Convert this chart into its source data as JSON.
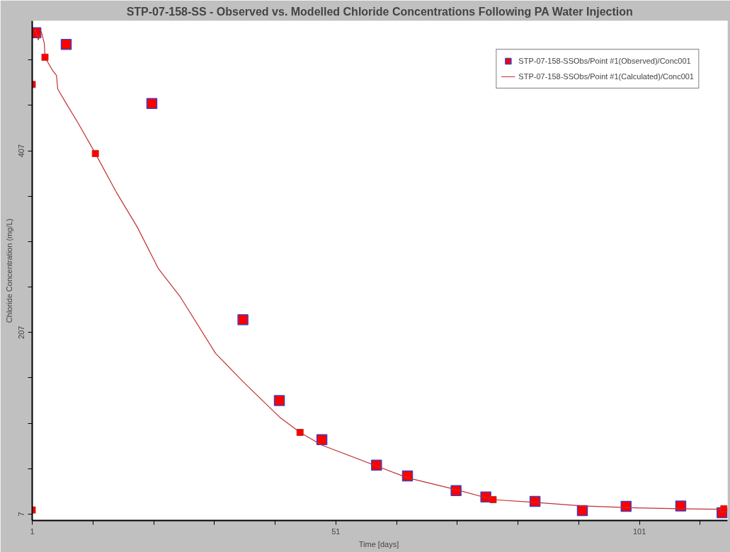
{
  "chart_data": {
    "type": "scatter",
    "title": "STP-07-158-SS - Observed vs. Modelled Chloride Concentrations Following PA Water Injection",
    "xlabel": "Time  [days]",
    "ylabel": "Chloride Concentration (mg/L)",
    "xlim": [
      1,
      115.5
    ],
    "ylim": [
      0,
      550
    ],
    "xticks": [
      1,
      {
        "value": 11,
        "label": null
      },
      {
        "value": 21,
        "label": null
      },
      {
        "value": 31,
        "label": null
      },
      {
        "value": 41,
        "label": null
      },
      51,
      {
        "value": 61,
        "label": null
      },
      {
        "value": 71,
        "label": null
      },
      {
        "value": 81,
        "label": null
      },
      {
        "value": 91,
        "label": null
      },
      101,
      {
        "value": 111,
        "label": null
      }
    ],
    "yticks": [
      7,
      {
        "value": 57,
        "label": null
      },
      {
        "value": 107,
        "label": null
      },
      {
        "value": 157,
        "label": null
      },
      207,
      {
        "value": 257,
        "label": null
      },
      {
        "value": 307,
        "label": null
      },
      {
        "value": 357,
        "label": null
      },
      407,
      {
        "value": 457,
        "label": null
      },
      {
        "value": 507,
        "label": null
      }
    ],
    "grid": false,
    "legend": "top right",
    "series": [
      {
        "name": "STP-07-158-SSObs/Point #1(Observed)/Conc001",
        "marker": "square",
        "color": "#ff0000",
        "x": [
          1.6,
          6.6,
          20.7,
          35.7,
          41.7,
          48.7,
          57.7,
          62.8,
          70.8,
          75.7,
          83.8,
          91.6,
          98.8,
          107.8,
          114.6
        ],
        "values": [
          537,
          524,
          459,
          221,
          132,
          89,
          61,
          49,
          33,
          26,
          21,
          11,
          15.5,
          16,
          8.5
        ]
      },
      {
        "name": "STP-07-158-SSObs/Point #1(Calculated)/Conc001",
        "type": "line",
        "marker": "none",
        "line_style": "solid",
        "color": "#c03030",
        "x": [
          1,
          1.5,
          2,
          2.5,
          3,
          3.1,
          4.3,
          5.0,
          5.2,
          6.7,
          8.6,
          11.4,
          14.8,
          18.3,
          21.8,
          25.4,
          31.2,
          35.7,
          41.7,
          45.1,
          48.7,
          57.7,
          62.8,
          70.8,
          76.9,
          83.8,
          91.6,
          100.3,
          107.8,
          114.9
        ],
        "values": [
          534,
          541,
          529,
          538,
          525,
          510,
          496,
          490,
          475,
          458,
          437,
          404,
          362,
          323,
          277,
          246,
          184,
          153,
          114,
          97,
          83,
          60,
          47,
          34,
          23,
          20,
          16,
          14,
          13,
          12.4
        ]
      },
      {
        "marker": "square",
        "color": "#ff0000",
        "x": [
          1,
          1,
          3.1,
          11.4,
          45.1,
          76.9,
          114.9
        ],
        "values": [
          480,
          11.6,
          510,
          404,
          97,
          23,
          13
        ]
      }
    ]
  }
}
